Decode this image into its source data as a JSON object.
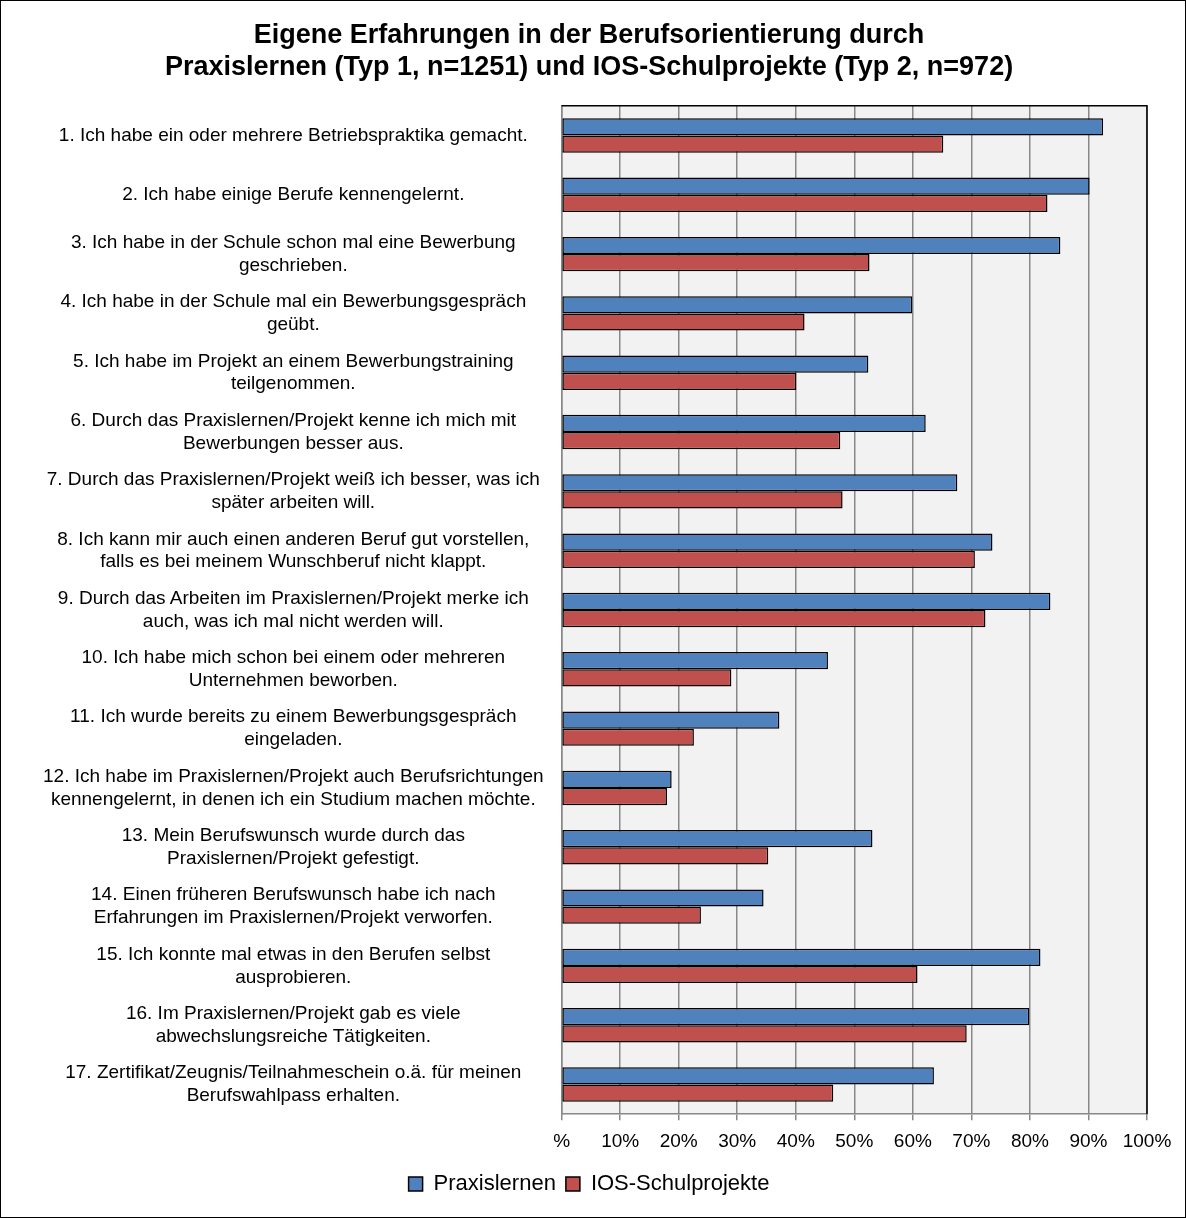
{
  "chart_data": {
    "type": "bar",
    "orientation": "horizontal",
    "title": "Eigene Erfahrungen in der Berufsorientierung durch\nPraxislernen (Typ 1, n=1251) und IOS-Schulprojekte (Typ 2, n=972)",
    "categories": [
      "1. Ich habe ein oder mehrere Betriebspraktika gemacht.",
      "2. Ich habe einige Berufe kennengelernt.",
      "3. Ich habe in der Schule schon mal eine Bewerbung\ngeschrieben.",
      "4. Ich habe in der Schule mal ein Bewerbungsgespräch\ngeübt.",
      "5. Ich habe im Projekt an einem Bewerbungstraining\nteilgenommen.",
      "6. Durch das Praxislernen/Projekt kenne ich mich mit\nBewerbungen besser aus.",
      "7. Durch das Praxislernen/Projekt weiß ich besser, was ich\nspäter arbeiten will.",
      "8. Ich kann mir auch einen anderen Beruf gut vorstellen,\nfalls es bei meinem Wunschberuf nicht klappt.",
      "9. Durch das Arbeiten im Praxislernen/Projekt merke ich\nauch, was ich mal nicht werden will.",
      "10. Ich habe mich schon bei einem oder mehreren\nUnternehmen beworben.",
      "11. Ich wurde bereits zu einem Bewerbungsgespräch\neingeladen.",
      "12. Ich habe im Praxislernen/Projekt auch Berufsrichtungen\nkennengelernt, in denen ich ein Studium machen möchte.",
      "13. Mein Berufswunsch wurde durch das\nPraxislernen/Projekt gefestigt.",
      "14. Einen früheren Berufswunsch habe ich nach\nErfahrungen im Praxislernen/Projekt verworfen.",
      "15. Ich konnte mal etwas in den Berufen selbst\nausprobieren.",
      "16. Im Praxislernen/Projekt gab es viele\nabwechslungsreiche Tätigkeiten.",
      "17. Zertifikat/Zeugnis/Teilnahmeschein o.ä. für meinen\nBerufswahlpass erhalten."
    ],
    "series": [
      {
        "name": "Praxislernen",
        "color": "#4f81bd",
        "values": [
          92.5,
          90.2,
          85.2,
          59.9,
          52.4,
          62.2,
          67.6,
          73.6,
          83.5,
          45.5,
          37.2,
          18.8,
          53.1,
          34.5,
          81.8,
          79.9,
          63.6
        ]
      },
      {
        "name": "IOS-Schulprojekte",
        "color": "#c0504d",
        "values": [
          65.2,
          83.0,
          52.6,
          41.5,
          40.1,
          47.6,
          48.0,
          70.6,
          72.4,
          29.0,
          22.6,
          18.0,
          35.3,
          23.8,
          60.8,
          69.2,
          46.4
        ]
      }
    ],
    "xlim": [
      0,
      100
    ],
    "xticks": [
      {
        "value": 0,
        "label": "%"
      },
      {
        "value": 10,
        "label": "10%"
      },
      {
        "value": 20,
        "label": "20%"
      },
      {
        "value": 30,
        "label": "30%"
      },
      {
        "value": 40,
        "label": "40%"
      },
      {
        "value": 50,
        "label": "50%"
      },
      {
        "value": 60,
        "label": "60%"
      },
      {
        "value": 70,
        "label": "70%"
      },
      {
        "value": 80,
        "label": "80%"
      },
      {
        "value": 90,
        "label": "90%"
      },
      {
        "value": 100,
        "label": "100%"
      }
    ],
    "grid": "x",
    "legend": "bottom"
  }
}
